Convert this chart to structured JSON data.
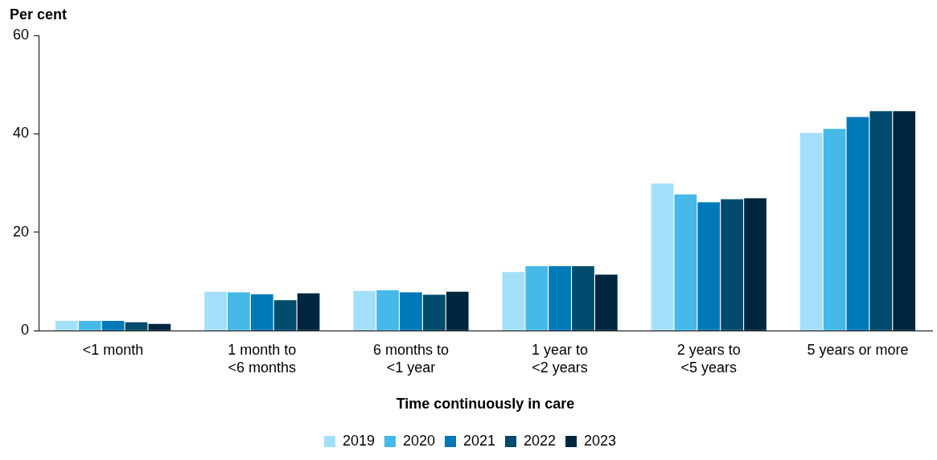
{
  "chart_data": {
    "type": "bar",
    "ylabel": "Per cent",
    "xlabel": "Time continuously in care",
    "categories": [
      "<1 month",
      "1 month to\n<6 months",
      "6 months to\n<1 year",
      "1 year to\n<2 years",
      "2 years to\n<5 years",
      "5 years or more"
    ],
    "series": [
      {
        "name": "2019",
        "color": "#a3dff8",
        "values": [
          2.0,
          7.9,
          8.1,
          11.9,
          29.9,
          40.2
        ]
      },
      {
        "name": "2020",
        "color": "#46b9e8",
        "values": [
          2.0,
          7.8,
          8.2,
          13.1,
          27.7,
          41.0
        ]
      },
      {
        "name": "2021",
        "color": "#0079b8",
        "values": [
          2.0,
          7.4,
          7.8,
          13.1,
          26.1,
          43.4
        ]
      },
      {
        "name": "2022",
        "color": "#004b6e",
        "values": [
          1.7,
          6.2,
          7.3,
          13.1,
          26.7,
          44.6
        ]
      },
      {
        "name": "2023",
        "color": "#00263f",
        "values": [
          1.4,
          7.6,
          7.9,
          11.4,
          26.9,
          44.6
        ]
      }
    ],
    "ylim": [
      0,
      60
    ],
    "yticks": [
      0,
      20,
      40,
      60
    ],
    "grid": false,
    "legend": "bottom"
  }
}
